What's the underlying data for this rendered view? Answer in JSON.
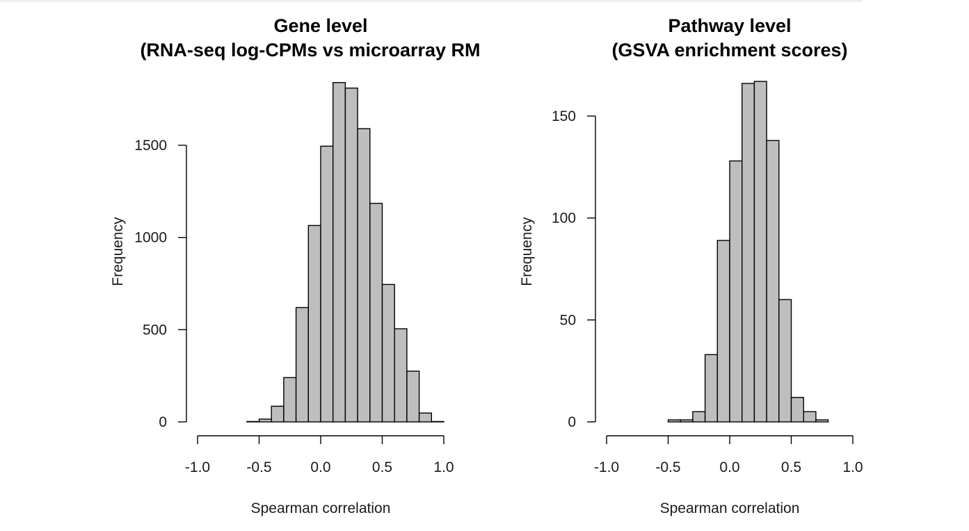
{
  "chart_data": [
    {
      "type": "histogram",
      "title": [
        "Gene level",
        "(RNA-seq log-CPMs vs microarray RM"
      ],
      "xlabel": "Spearman correlation",
      "ylabel": "Frequency",
      "xlim": [
        -1.0,
        1.0
      ],
      "xticks": [
        "-1.0",
        "-0.5",
        "0.0",
        "0.5",
        "1.0"
      ],
      "ylim": [
        0,
        1800
      ],
      "yticks": [
        "0",
        "500",
        "1000",
        "1500"
      ],
      "bin_width": 0.1,
      "bins": [
        {
          "x0": -0.6,
          "x1": -0.5,
          "count": 2
        },
        {
          "x0": -0.5,
          "x1": -0.4,
          "count": 15
        },
        {
          "x0": -0.4,
          "x1": -0.3,
          "count": 85
        },
        {
          "x0": -0.3,
          "x1": -0.2,
          "count": 240
        },
        {
          "x0": -0.2,
          "x1": -0.1,
          "count": 620
        },
        {
          "x0": -0.1,
          "x1": 0.0,
          "count": 1065
        },
        {
          "x0": 0.0,
          "x1": 0.1,
          "count": 1495
        },
        {
          "x0": 0.1,
          "x1": 0.2,
          "count": 1840
        },
        {
          "x0": 0.2,
          "x1": 0.3,
          "count": 1810
        },
        {
          "x0": 0.3,
          "x1": 0.4,
          "count": 1590
        },
        {
          "x0": 0.4,
          "x1": 0.5,
          "count": 1185
        },
        {
          "x0": 0.5,
          "x1": 0.6,
          "count": 745
        },
        {
          "x0": 0.6,
          "x1": 0.7,
          "count": 505
        },
        {
          "x0": 0.7,
          "x1": 0.8,
          "count": 275
        },
        {
          "x0": 0.8,
          "x1": 0.9,
          "count": 48
        },
        {
          "x0": 0.9,
          "x1": 1.0,
          "count": 2
        }
      ],
      "bar_color": "#bebebe"
    },
    {
      "type": "histogram",
      "title": [
        "Pathway level",
        "(GSVA enrichment scores)"
      ],
      "xlabel": "Spearman correlation",
      "ylabel": "Frequency",
      "xlim": [
        -1.0,
        1.0
      ],
      "xticks": [
        "-1.0",
        "-0.5",
        "0.0",
        "0.5",
        "1.0"
      ],
      "ylim": [
        0,
        150
      ],
      "yticks": [
        "0",
        "50",
        "100",
        "150"
      ],
      "bin_width": 0.1,
      "bins": [
        {
          "x0": -0.5,
          "x1": -0.4,
          "count": 1
        },
        {
          "x0": -0.4,
          "x1": -0.3,
          "count": 1
        },
        {
          "x0": -0.3,
          "x1": -0.2,
          "count": 5
        },
        {
          "x0": -0.2,
          "x1": -0.1,
          "count": 33
        },
        {
          "x0": -0.1,
          "x1": 0.0,
          "count": 89
        },
        {
          "x0": 0.0,
          "x1": 0.1,
          "count": 128
        },
        {
          "x0": 0.1,
          "x1": 0.2,
          "count": 166
        },
        {
          "x0": 0.2,
          "x1": 0.3,
          "count": 167
        },
        {
          "x0": 0.3,
          "x1": 0.4,
          "count": 138
        },
        {
          "x0": 0.4,
          "x1": 0.5,
          "count": 60
        },
        {
          "x0": 0.5,
          "x1": 0.6,
          "count": 12
        },
        {
          "x0": 0.6,
          "x1": 0.7,
          "count": 5
        },
        {
          "x0": 0.7,
          "x1": 0.8,
          "count": 1
        }
      ],
      "bar_color": "#bebebe"
    }
  ]
}
